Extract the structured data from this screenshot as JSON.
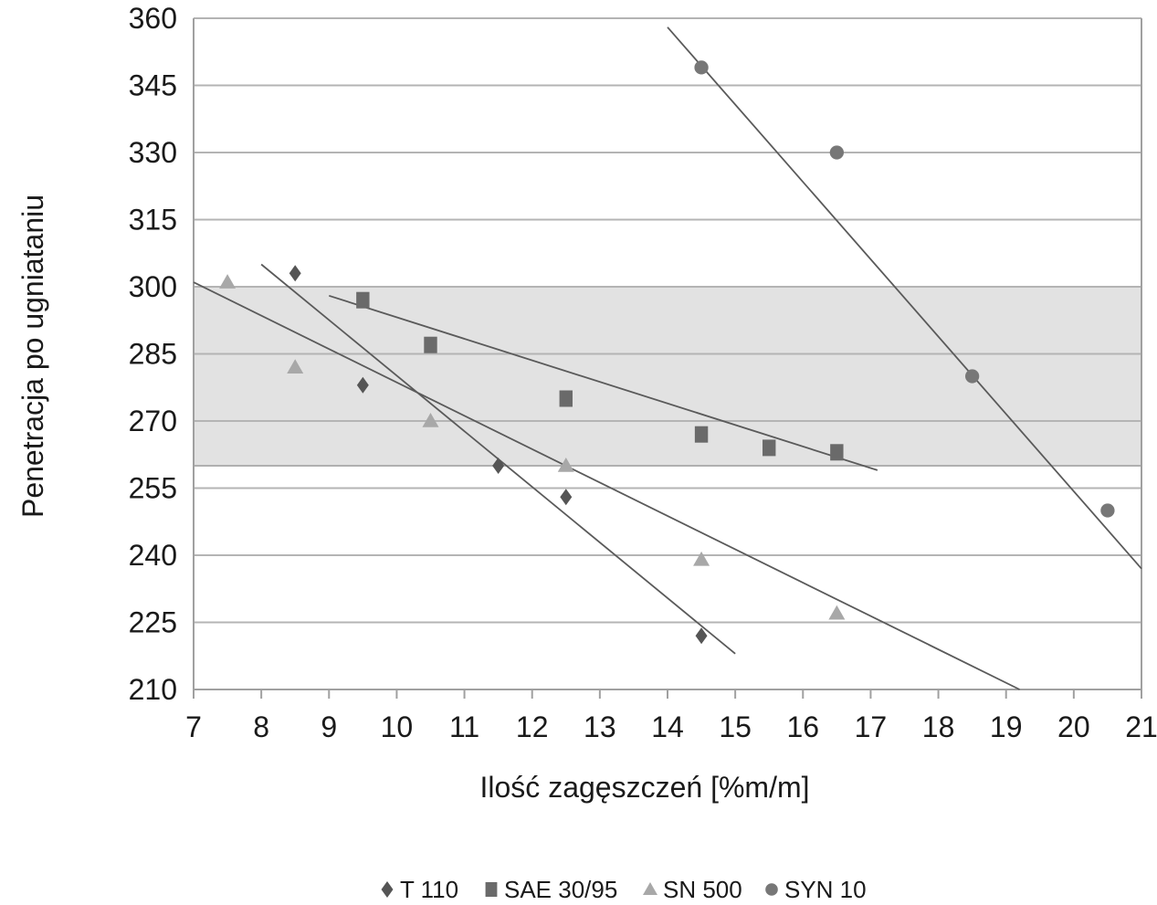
{
  "chart_data": {
    "type": "scatter",
    "title": "",
    "xlabel": "Ilość zagęszczeń [%m/m]",
    "ylabel": "Penetracja po ugniataniu",
    "xlim": [
      7,
      21
    ],
    "ylim": [
      210,
      360
    ],
    "x_ticks": [
      "7",
      "8",
      "9",
      "10",
      "11",
      "12",
      "13",
      "14",
      "15",
      "16",
      "17",
      "18",
      "19",
      "20",
      "21"
    ],
    "y_ticks": [
      "210",
      "225",
      "240",
      "255",
      "270",
      "285",
      "300",
      "315",
      "330",
      "345",
      "360"
    ],
    "grid": true,
    "shaded_band": {
      "y_from": 260,
      "y_to": 300,
      "color": "#e2e2e2"
    },
    "legend": {
      "position": "bottom"
    },
    "series": [
      {
        "name": "T 110",
        "marker": "diamond",
        "color": "#555555",
        "legend_symbol": "♦",
        "points": [
          [
            8.5,
            303
          ],
          [
            9.5,
            278
          ],
          [
            11.5,
            260
          ],
          [
            12.5,
            253
          ],
          [
            14.5,
            222
          ]
        ],
        "trend": {
          "from": [
            8.0,
            305
          ],
          "to": [
            15.0,
            218
          ]
        }
      },
      {
        "name": "SAE 30/95",
        "marker": "square",
        "color": "#6a6a6a",
        "legend_symbol": "■",
        "points": [
          [
            9.5,
            297
          ],
          [
            10.5,
            287
          ],
          [
            12.5,
            275
          ],
          [
            14.5,
            267
          ],
          [
            15.5,
            264
          ],
          [
            16.5,
            263
          ]
        ],
        "trend": {
          "from": [
            9.0,
            298
          ],
          "to": [
            17.1,
            259
          ]
        }
      },
      {
        "name": "SN 500",
        "marker": "triangle",
        "color": "#a8a8a8",
        "legend_symbol": "▲",
        "points": [
          [
            7.5,
            301
          ],
          [
            8.5,
            282
          ],
          [
            10.5,
            270
          ],
          [
            12.5,
            260
          ],
          [
            14.5,
            239
          ],
          [
            16.5,
            227
          ]
        ],
        "trend": {
          "from": [
            7.0,
            301
          ],
          "to": [
            19.2,
            210
          ]
        }
      },
      {
        "name": "SYN 10",
        "marker": "circle",
        "color": "#777777",
        "legend_symbol": "●",
        "points": [
          [
            14.5,
            349
          ],
          [
            16.5,
            330
          ],
          [
            18.5,
            280
          ],
          [
            20.5,
            250
          ]
        ],
        "trend": {
          "from": [
            14.0,
            358
          ],
          "to": [
            21.0,
            237
          ]
        }
      }
    ]
  }
}
